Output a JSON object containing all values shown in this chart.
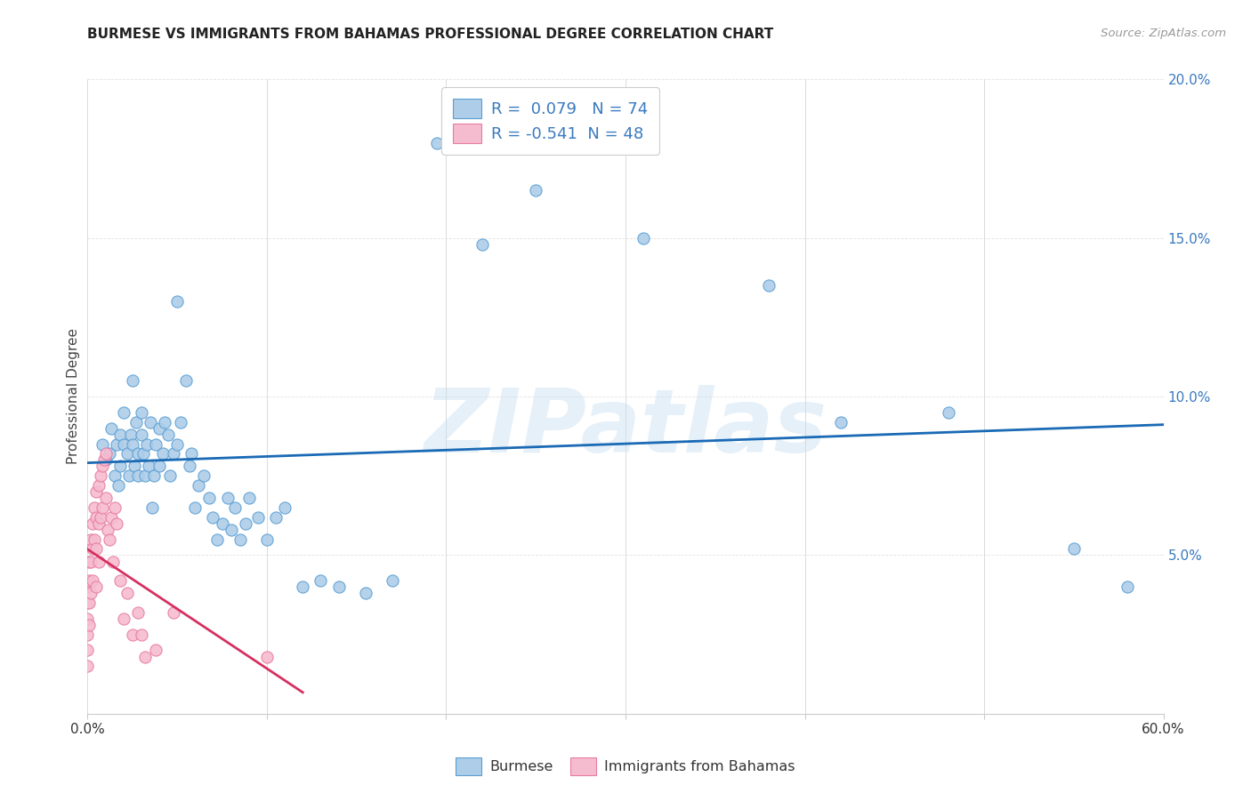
{
  "title": "BURMESE VS IMMIGRANTS FROM BAHAMAS PROFESSIONAL DEGREE CORRELATION CHART",
  "source": "Source: ZipAtlas.com",
  "ylabel": "Professional Degree",
  "yaxis_ticks": [
    0.0,
    0.05,
    0.1,
    0.15,
    0.2
  ],
  "yaxis_labels": [
    "",
    "5.0%",
    "10.0%",
    "15.0%",
    "20.0%"
  ],
  "xlim": [
    0.0,
    0.6
  ],
  "ylim": [
    0.0,
    0.2
  ],
  "blue_R": 0.079,
  "blue_N": 74,
  "pink_R": -0.541,
  "pink_N": 48,
  "blue_color": "#aecde8",
  "blue_edge_color": "#5a9fd4",
  "blue_line_color": "#1a6ab5",
  "pink_color": "#f5bcd0",
  "pink_edge_color": "#e87ca0",
  "pink_line_color": "#d63060",
  "blue_scatter_x": [
    0.008,
    0.01,
    0.012,
    0.013,
    0.015,
    0.016,
    0.017,
    0.018,
    0.018,
    0.02,
    0.02,
    0.022,
    0.023,
    0.024,
    0.025,
    0.025,
    0.026,
    0.027,
    0.028,
    0.028,
    0.03,
    0.03,
    0.031,
    0.032,
    0.033,
    0.034,
    0.035,
    0.036,
    0.037,
    0.038,
    0.04,
    0.04,
    0.042,
    0.043,
    0.045,
    0.046,
    0.048,
    0.05,
    0.05,
    0.052,
    0.055,
    0.057,
    0.058,
    0.06,
    0.062,
    0.065,
    0.068,
    0.07,
    0.072,
    0.075,
    0.078,
    0.08,
    0.082,
    0.085,
    0.088,
    0.09,
    0.095,
    0.1,
    0.105,
    0.11,
    0.12,
    0.13,
    0.14,
    0.155,
    0.17,
    0.195,
    0.22,
    0.25,
    0.31,
    0.38,
    0.42,
    0.48,
    0.55,
    0.58
  ],
  "blue_scatter_y": [
    0.085,
    0.08,
    0.082,
    0.09,
    0.075,
    0.085,
    0.072,
    0.088,
    0.078,
    0.085,
    0.095,
    0.082,
    0.075,
    0.088,
    0.085,
    0.105,
    0.078,
    0.092,
    0.082,
    0.075,
    0.088,
    0.095,
    0.082,
    0.075,
    0.085,
    0.078,
    0.092,
    0.065,
    0.075,
    0.085,
    0.09,
    0.078,
    0.082,
    0.092,
    0.088,
    0.075,
    0.082,
    0.085,
    0.13,
    0.092,
    0.105,
    0.078,
    0.082,
    0.065,
    0.072,
    0.075,
    0.068,
    0.062,
    0.055,
    0.06,
    0.068,
    0.058,
    0.065,
    0.055,
    0.06,
    0.068,
    0.062,
    0.055,
    0.062,
    0.065,
    0.04,
    0.042,
    0.04,
    0.038,
    0.042,
    0.18,
    0.148,
    0.165,
    0.15,
    0.135,
    0.092,
    0.095,
    0.052,
    0.04
  ],
  "pink_scatter_x": [
    0.0,
    0.0,
    0.0,
    0.0,
    0.0,
    0.0,
    0.001,
    0.001,
    0.001,
    0.001,
    0.002,
    0.002,
    0.002,
    0.003,
    0.003,
    0.003,
    0.004,
    0.004,
    0.005,
    0.005,
    0.005,
    0.005,
    0.006,
    0.006,
    0.006,
    0.007,
    0.007,
    0.008,
    0.008,
    0.009,
    0.01,
    0.01,
    0.011,
    0.012,
    0.013,
    0.014,
    0.015,
    0.016,
    0.018,
    0.02,
    0.022,
    0.025,
    0.028,
    0.03,
    0.032,
    0.038,
    0.048,
    0.1
  ],
  "pink_scatter_y": [
    0.04,
    0.035,
    0.03,
    0.025,
    0.02,
    0.015,
    0.048,
    0.042,
    0.035,
    0.028,
    0.055,
    0.048,
    0.038,
    0.06,
    0.052,
    0.042,
    0.065,
    0.055,
    0.07,
    0.062,
    0.052,
    0.04,
    0.072,
    0.06,
    0.048,
    0.075,
    0.062,
    0.078,
    0.065,
    0.08,
    0.082,
    0.068,
    0.058,
    0.055,
    0.062,
    0.048,
    0.065,
    0.06,
    0.042,
    0.03,
    0.038,
    0.025,
    0.032,
    0.025,
    0.018,
    0.02,
    0.032,
    0.018
  ],
  "watermark_text": "ZIPatlas",
  "background_color": "#ffffff",
  "grid_color": "#e0e0e0"
}
